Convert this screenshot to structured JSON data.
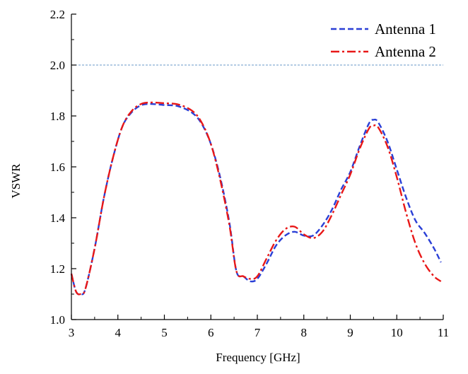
{
  "chart_data": {
    "type": "line",
    "title": "",
    "xlabel": "Frequency [GHz]",
    "ylabel": "VSWR",
    "xlim": [
      3,
      11
    ],
    "ylim": [
      1.0,
      2.2
    ],
    "x_ticks": [
      3,
      4,
      5,
      6,
      7,
      8,
      9,
      10,
      11
    ],
    "y_ticks": [
      1.0,
      1.2,
      1.4,
      1.6,
      1.8,
      2.0,
      2.2
    ],
    "x_tick_labels": [
      "3",
      "4",
      "5",
      "6",
      "7",
      "8",
      "9",
      "10",
      "11"
    ],
    "y_tick_labels": [
      "1.0",
      "1.2",
      "1.4",
      "1.6",
      "1.8",
      "2.0",
      "2.2"
    ],
    "grid": false,
    "legend_position": "top-right",
    "reference_line": {
      "y": 2.0,
      "color": "#6a9ac8"
    },
    "series": [
      {
        "name": "Antenna 1",
        "color": "#2a3fd6",
        "line_style": "dashed",
        "x": [
          3.0,
          3.1,
          3.2,
          3.3,
          3.5,
          3.7,
          3.9,
          4.1,
          4.3,
          4.5,
          4.7,
          5.0,
          5.3,
          5.6,
          5.8,
          6.0,
          6.2,
          6.4,
          6.55,
          6.7,
          6.85,
          7.0,
          7.2,
          7.4,
          7.6,
          7.8,
          8.0,
          8.2,
          8.4,
          8.6,
          8.8,
          9.0,
          9.2,
          9.4,
          9.5,
          9.6,
          9.8,
          10.0,
          10.2,
          10.4,
          10.6,
          10.8,
          10.95
        ],
        "y": [
          1.18,
          1.11,
          1.1,
          1.12,
          1.28,
          1.48,
          1.64,
          1.76,
          1.815,
          1.842,
          1.847,
          1.843,
          1.838,
          1.812,
          1.77,
          1.69,
          1.56,
          1.38,
          1.19,
          1.17,
          1.15,
          1.16,
          1.22,
          1.29,
          1.33,
          1.345,
          1.33,
          1.33,
          1.37,
          1.43,
          1.51,
          1.58,
          1.68,
          1.77,
          1.785,
          1.775,
          1.7,
          1.59,
          1.48,
          1.39,
          1.34,
          1.28,
          1.225
        ]
      },
      {
        "name": "Antenna 2",
        "color": "#e81818",
        "line_style": "dash-dot",
        "x": [
          3.0,
          3.1,
          3.2,
          3.3,
          3.5,
          3.7,
          3.9,
          4.1,
          4.3,
          4.5,
          4.7,
          5.0,
          5.3,
          5.6,
          5.8,
          6.0,
          6.2,
          6.4,
          6.55,
          6.7,
          6.85,
          7.0,
          7.2,
          7.4,
          7.6,
          7.8,
          8.0,
          8.2,
          8.4,
          8.6,
          8.8,
          9.0,
          9.2,
          9.4,
          9.5,
          9.6,
          9.8,
          10.0,
          10.2,
          10.4,
          10.6,
          10.8,
          10.95
        ],
        "y": [
          1.18,
          1.11,
          1.1,
          1.12,
          1.28,
          1.48,
          1.64,
          1.76,
          1.82,
          1.847,
          1.853,
          1.85,
          1.845,
          1.82,
          1.775,
          1.69,
          1.55,
          1.37,
          1.19,
          1.17,
          1.16,
          1.17,
          1.24,
          1.31,
          1.355,
          1.365,
          1.335,
          1.32,
          1.345,
          1.41,
          1.49,
          1.57,
          1.67,
          1.75,
          1.762,
          1.755,
          1.68,
          1.56,
          1.42,
          1.3,
          1.22,
          1.17,
          1.15
        ]
      }
    ]
  }
}
